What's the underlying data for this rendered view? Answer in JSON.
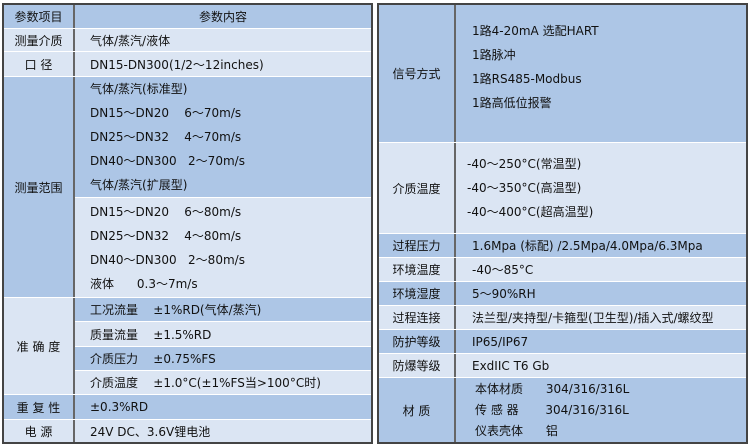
{
  "left": {
    "header": {
      "label": "参数项目",
      "value": "参数内容"
    },
    "medium": {
      "label": "测量介质",
      "value": "气体/蒸汽/液体"
    },
    "diameter": {
      "label": "口  径",
      "value": "DN15-DN300(1/2～12inches)"
    },
    "range": {
      "label": "测量范围",
      "lines": [
        "气体/蒸汽(标准型)",
        "DN15～DN20    6～70m/s",
        "DN25～DN32    4～70m/s",
        "DN40～DN300   2～70m/s",
        "气体/蒸汽(扩展型)",
        "DN15～DN20    6～80m/s",
        "DN25～DN32    4～80m/s",
        "DN40～DN300   2～80m/s",
        "液体      0.3～7m/s"
      ]
    },
    "accuracy": {
      "label": "准 确 度",
      "lines": [
        "工况流量    ±1%RD(气体/蒸汽)",
        "质量流量    ±1.5%RD",
        "介质压力    ±0.75%FS",
        "介质温度    ±1.0°C(±1%FS当>100°C时)"
      ]
    },
    "repeatability": {
      "label": "重 复 性",
      "value": "±0.3%RD"
    },
    "power": {
      "label": "电  源",
      "value": "24V DC、3.6V锂电池"
    }
  },
  "right": {
    "signal": {
      "label": "信号方式",
      "lines": [
        "1路4-20mA 选配HART",
        "1路脉冲",
        "1路RS485-Modbus",
        "1路高低位报警"
      ]
    },
    "medium_temp": {
      "label": "介质温度",
      "lines": [
        "-40～250°C(常温型)",
        "-40～350°C(高温型)",
        "-40～400°C(超高温型)"
      ]
    },
    "pressure": {
      "label": "过程压力",
      "value": "1.6Mpa (标配) /2.5Mpa/4.0Mpa/6.3Mpa"
    },
    "ambient_temp": {
      "label": "环境温度",
      "value": "-40～85°C"
    },
    "humidity": {
      "label": "环境湿度",
      "value": "5～90%RH"
    },
    "connection": {
      "label": "过程连接",
      "value": "法兰型/夹持型/卡箍型(卫生型)/插入式/螺纹型"
    },
    "protection": {
      "label": "防护等级",
      "value": "IP65/IP67"
    },
    "explosion": {
      "label": "防爆等级",
      "value": "ExdIIC T6 Gb"
    },
    "material": {
      "label": "材  质",
      "lines": [
        "本体材质      304/316/316L",
        "传 感 器       304/316/316L",
        "仪表壳体      铝"
      ]
    }
  },
  "colors": {
    "dark": "#adc6e6",
    "light": "#dbe5f3",
    "border": "#444444"
  }
}
